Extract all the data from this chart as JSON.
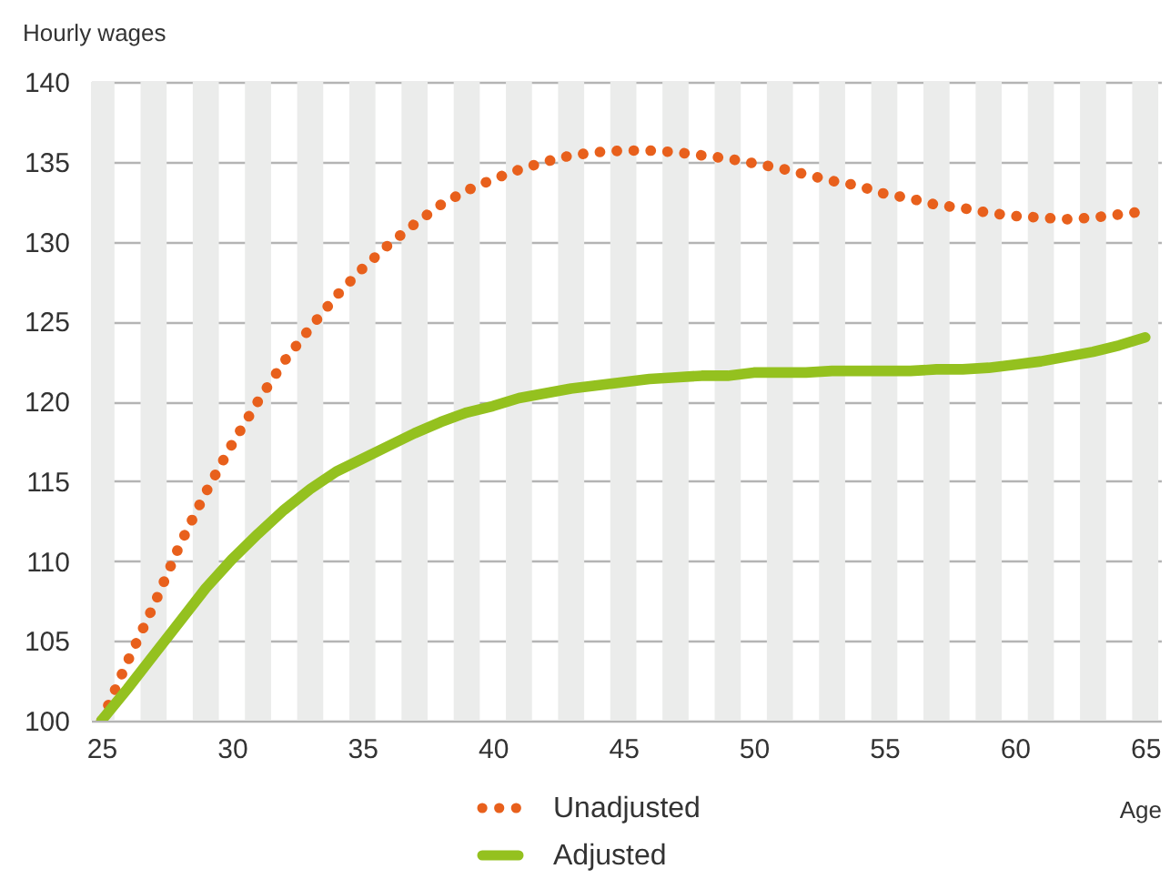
{
  "chart_data": {
    "type": "line",
    "ylabel": "Hourly wages",
    "xlabel": "Age",
    "x": [
      25,
      26,
      27,
      28,
      29,
      30,
      31,
      32,
      33,
      34,
      35,
      36,
      37,
      38,
      39,
      40,
      41,
      42,
      43,
      44,
      45,
      46,
      47,
      48,
      49,
      50,
      51,
      52,
      53,
      54,
      55,
      56,
      57,
      58,
      59,
      60,
      61,
      62,
      63,
      64,
      65
    ],
    "series": [
      {
        "name": "Unadjusted",
        "color": "#e8601c",
        "line_style": "dotted",
        "values": [
          100,
          103.7,
          107.2,
          111.0,
          114.3,
          117.3,
          120.0,
          122.5,
          124.6,
          126.6,
          128.3,
          129.8,
          131.1,
          132.3,
          133.2,
          133.9,
          134.5,
          135.0,
          135.4,
          135.6,
          135.7,
          135.7,
          135.6,
          135.4,
          135.2,
          134.9,
          134.6,
          134.2,
          133.8,
          133.5,
          133.0,
          132.7,
          132.3,
          132.1,
          131.8,
          131.6,
          131.5,
          131.4,
          131.5,
          131.7,
          131.9
        ]
      },
      {
        "name": "Adjusted",
        "color": "#94c11f",
        "line_style": "solid",
        "values": [
          100,
          102.0,
          104.1,
          106.2,
          108.3,
          110.1,
          111.7,
          113.2,
          114.5,
          115.6,
          116.4,
          117.2,
          118.0,
          118.7,
          119.3,
          119.7,
          120.2,
          120.5,
          120.8,
          121.0,
          121.2,
          121.4,
          121.5,
          121.6,
          121.6,
          121.8,
          121.8,
          121.8,
          121.9,
          121.9,
          121.9,
          121.9,
          122.0,
          122.0,
          122.1,
          122.3,
          122.5,
          122.8,
          123.1,
          123.5,
          124.0
        ]
      }
    ],
    "xlim": [
      24.6,
      65.6
    ],
    "xticks": [
      25,
      30,
      35,
      40,
      45,
      50,
      55,
      60,
      65
    ],
    "ylim": [
      100,
      140
    ],
    "yticks": [
      100,
      105,
      110,
      115,
      120,
      125,
      130,
      135,
      140
    ],
    "grid": "y",
    "legend": "bottom",
    "bands": [
      {
        "axis": "x",
        "from": 24.6,
        "to": 25.5,
        "color": "#ebeceb"
      },
      {
        "axis": "x",
        "from": 26.5,
        "to": 27.5,
        "color": "#ebeceb"
      },
      {
        "axis": "x",
        "from": 28.5,
        "to": 29.5,
        "color": "#ebeceb"
      },
      {
        "axis": "x",
        "from": 30.5,
        "to": 31.5,
        "color": "#ebeceb"
      },
      {
        "axis": "x",
        "from": 32.5,
        "to": 33.5,
        "color": "#ebeceb"
      },
      {
        "axis": "x",
        "from": 34.5,
        "to": 35.5,
        "color": "#ebeceb"
      },
      {
        "axis": "x",
        "from": 36.5,
        "to": 37.5,
        "color": "#ebeceb"
      },
      {
        "axis": "x",
        "from": 38.5,
        "to": 39.5,
        "color": "#ebeceb"
      },
      {
        "axis": "x",
        "from": 40.5,
        "to": 41.5,
        "color": "#ebeceb"
      },
      {
        "axis": "x",
        "from": 42.5,
        "to": 43.5,
        "color": "#ebeceb"
      },
      {
        "axis": "x",
        "from": 44.5,
        "to": 45.5,
        "color": "#ebeceb"
      },
      {
        "axis": "x",
        "from": 46.5,
        "to": 47.5,
        "color": "#ebeceb"
      },
      {
        "axis": "x",
        "from": 48.5,
        "to": 49.5,
        "color": "#ebeceb"
      },
      {
        "axis": "x",
        "from": 50.5,
        "to": 51.5,
        "color": "#ebeceb"
      },
      {
        "axis": "x",
        "from": 52.5,
        "to": 53.5,
        "color": "#ebeceb"
      },
      {
        "axis": "x",
        "from": 54.5,
        "to": 55.5,
        "color": "#ebeceb"
      },
      {
        "axis": "x",
        "from": 56.5,
        "to": 57.5,
        "color": "#ebeceb"
      },
      {
        "axis": "x",
        "from": 58.5,
        "to": 59.5,
        "color": "#ebeceb"
      },
      {
        "axis": "x",
        "from": 60.5,
        "to": 61.5,
        "color": "#ebeceb"
      },
      {
        "axis": "x",
        "from": 62.5,
        "to": 63.5,
        "color": "#ebeceb"
      },
      {
        "axis": "x",
        "from": 64.5,
        "to": 65.5,
        "color": "#ebeceb"
      }
    ]
  }
}
